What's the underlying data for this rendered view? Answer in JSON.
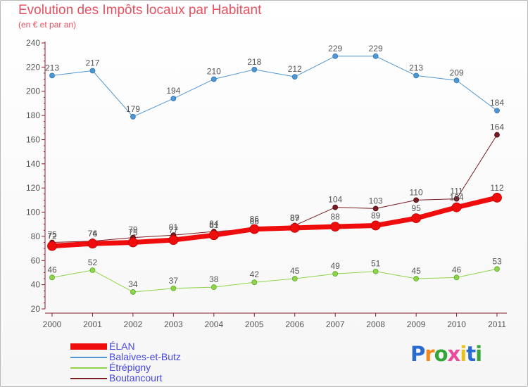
{
  "header": {
    "title": "Evolution des Impôts locaux par Habitant",
    "subtitle": "(en € et par an)"
  },
  "logo": {
    "letters": [
      "P",
      "r",
      "o",
      "x",
      "i",
      "t",
      "i"
    ],
    "colors": [
      "#2a6bd1",
      "#f08a1c",
      "#36a63a",
      "#e84c9b",
      "#e8c21c",
      "#2a6bd1",
      "#36a63a"
    ]
  },
  "chart_data": {
    "type": "line",
    "title": "Evolution des Impôts locaux par Habitant",
    "subtitle": "(en € et par an)",
    "categories": [
      "2000",
      "2001",
      "2002",
      "2003",
      "2004",
      "2005",
      "2006",
      "2007",
      "2008",
      "2009",
      "2010",
      "2011"
    ],
    "ylim": [
      20,
      240
    ],
    "yticks": [
      20,
      40,
      60,
      80,
      100,
      120,
      140,
      160,
      180,
      200,
      220,
      240
    ],
    "grid": false,
    "legend_position": "bottom-left",
    "series": [
      {
        "name": "Balaives-et-Butz",
        "color": "#4f97d2",
        "values": [
          213,
          217,
          179,
          194,
          210,
          218,
          212,
          229,
          229,
          213,
          209,
          184
        ],
        "labels": [
          "213",
          "217",
          "179",
          "194",
          "210",
          "218",
          "212",
          "229",
          "229",
          "213",
          "209",
          "184"
        ]
      },
      {
        "name": "Étrépigny",
        "color": "#8fd44a",
        "values": [
          46,
          52,
          34,
          37,
          38,
          42,
          45,
          49,
          51,
          45,
          46,
          53
        ],
        "labels": [
          "46",
          "52",
          "34",
          "37",
          "38",
          "42",
          "45",
          "49",
          "51",
          "45",
          "46",
          "53"
        ]
      },
      {
        "name": "Boutancourt",
        "color": "#7a1a22",
        "values": [
          75,
          76,
          79,
          81,
          84,
          86,
          89,
          104,
          103,
          110,
          111,
          164
        ],
        "labels": [
          "75",
          "76",
          "79",
          "81",
          "84",
          "86",
          "89",
          "104",
          "103",
          "110",
          "111",
          "164"
        ]
      },
      {
        "name": "ÉLAN",
        "color": "#ee0c0c",
        "values": [
          72,
          74,
          75,
          77,
          81,
          86,
          87,
          88,
          89,
          95,
          104,
          112
        ],
        "labels": [
          "72",
          "74",
          "75",
          "77",
          "81",
          "86",
          "87",
          "88",
          "89",
          "95",
          "104",
          "112"
        ]
      }
    ],
    "legend": [
      {
        "name": "ÉLAN",
        "color": "#ee0c0c"
      },
      {
        "name": "Balaives-et-Butz",
        "color": "#4f97d2"
      },
      {
        "name": "Étrépigny",
        "color": "#8fd44a"
      },
      {
        "name": "Boutancourt",
        "color": "#7a1a22"
      }
    ]
  }
}
